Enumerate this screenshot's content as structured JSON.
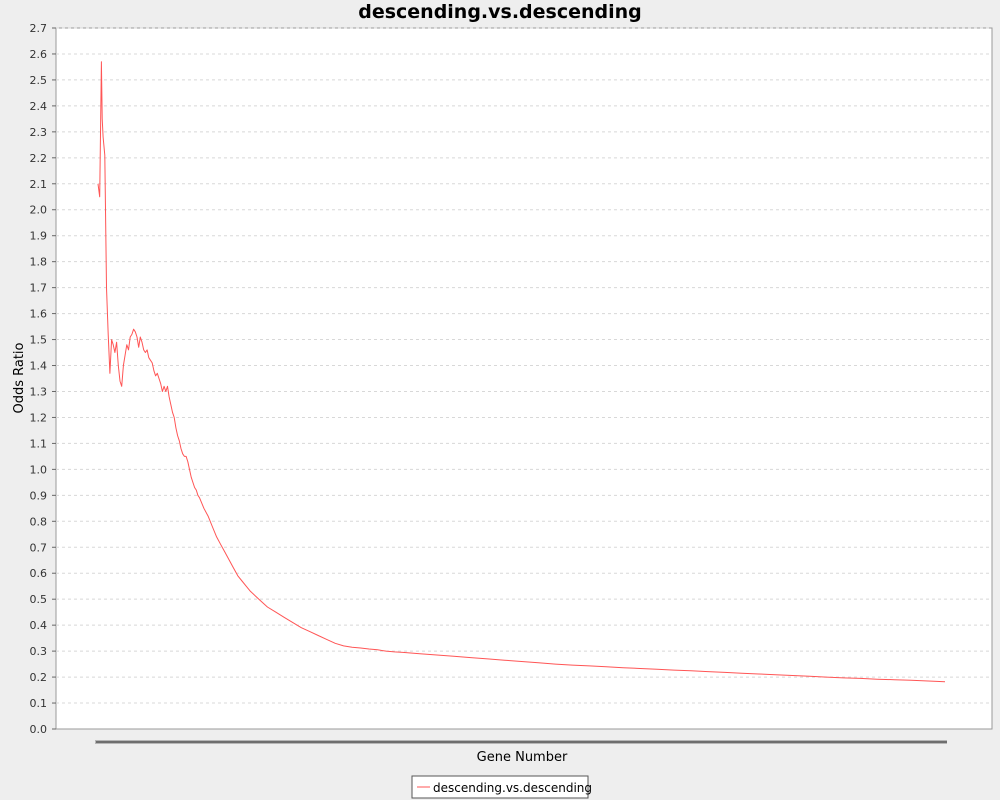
{
  "chart_data": {
    "type": "line",
    "title": "descending.vs.descending",
    "xlabel": "Gene Number",
    "ylabel": "Odds Ratio",
    "ylim": [
      0,
      2.7
    ],
    "yticks": [
      0.0,
      0.1,
      0.2,
      0.3,
      0.4,
      0.5,
      0.6,
      0.7,
      0.8,
      0.9,
      1.0,
      1.1,
      1.2,
      1.3,
      1.4,
      1.5,
      1.6,
      1.7,
      1.8,
      1.9,
      2.0,
      2.1,
      2.2,
      2.3,
      2.4,
      2.5,
      2.6,
      2.7
    ],
    "xlim": [
      0,
      1
    ],
    "grid": true,
    "legend_position": "bottom-center",
    "series": [
      {
        "name": "descending.vs.descending",
        "color": "#ff5555",
        "x": [
          0.0,
          0.002,
          0.004,
          0.005,
          0.006,
          0.008,
          0.01,
          0.012,
          0.014,
          0.016,
          0.018,
          0.02,
          0.022,
          0.024,
          0.026,
          0.028,
          0.03,
          0.032,
          0.034,
          0.036,
          0.038,
          0.04,
          0.042,
          0.044,
          0.046,
          0.048,
          0.05,
          0.052,
          0.054,
          0.056,
          0.058,
          0.06,
          0.062,
          0.064,
          0.066,
          0.068,
          0.07,
          0.072,
          0.074,
          0.076,
          0.078,
          0.08,
          0.082,
          0.084,
          0.086,
          0.088,
          0.09,
          0.092,
          0.094,
          0.096,
          0.098,
          0.1,
          0.102,
          0.104,
          0.106,
          0.108,
          0.11,
          0.112,
          0.114,
          0.116,
          0.118,
          0.12,
          0.125,
          0.13,
          0.135,
          0.14,
          0.145,
          0.15,
          0.155,
          0.16,
          0.165,
          0.17,
          0.175,
          0.18,
          0.19,
          0.2,
          0.21,
          0.22,
          0.23,
          0.24,
          0.25,
          0.26,
          0.27,
          0.28,
          0.29,
          0.3,
          0.31,
          0.32,
          0.33,
          0.34,
          0.35,
          0.36,
          0.38,
          0.4,
          0.42,
          0.44,
          0.46,
          0.48,
          0.5,
          0.52,
          0.54,
          0.56,
          0.58,
          0.6,
          0.62,
          0.64,
          0.66,
          0.68,
          0.7,
          0.72,
          0.74,
          0.76,
          0.78,
          0.8,
          0.82,
          0.84,
          0.86,
          0.88,
          0.9,
          0.92,
          0.94,
          0.96,
          0.98,
          1.0
        ],
        "values": [
          2.1,
          2.05,
          2.57,
          2.35,
          2.28,
          2.21,
          1.7,
          1.52,
          1.37,
          1.5,
          1.48,
          1.45,
          1.49,
          1.4,
          1.34,
          1.32,
          1.4,
          1.44,
          1.48,
          1.46,
          1.51,
          1.52,
          1.54,
          1.53,
          1.51,
          1.47,
          1.51,
          1.49,
          1.46,
          1.45,
          1.46,
          1.43,
          1.42,
          1.41,
          1.38,
          1.36,
          1.37,
          1.35,
          1.33,
          1.3,
          1.32,
          1.3,
          1.32,
          1.28,
          1.25,
          1.22,
          1.2,
          1.16,
          1.13,
          1.11,
          1.08,
          1.06,
          1.05,
          1.05,
          1.03,
          1.0,
          0.97,
          0.95,
          0.93,
          0.92,
          0.9,
          0.89,
          0.85,
          0.82,
          0.78,
          0.74,
          0.71,
          0.68,
          0.65,
          0.62,
          0.59,
          0.57,
          0.55,
          0.53,
          0.5,
          0.47,
          0.45,
          0.43,
          0.41,
          0.39,
          0.375,
          0.36,
          0.345,
          0.33,
          0.32,
          0.315,
          0.312,
          0.308,
          0.305,
          0.3,
          0.297,
          0.295,
          0.29,
          0.285,
          0.28,
          0.275,
          0.27,
          0.265,
          0.26,
          0.255,
          0.25,
          0.246,
          0.243,
          0.24,
          0.236,
          0.233,
          0.23,
          0.227,
          0.224,
          0.221,
          0.218,
          0.215,
          0.212,
          0.209,
          0.206,
          0.203,
          0.2,
          0.197,
          0.195,
          0.192,
          0.19,
          0.188,
          0.185,
          0.182
        ]
      }
    ]
  }
}
